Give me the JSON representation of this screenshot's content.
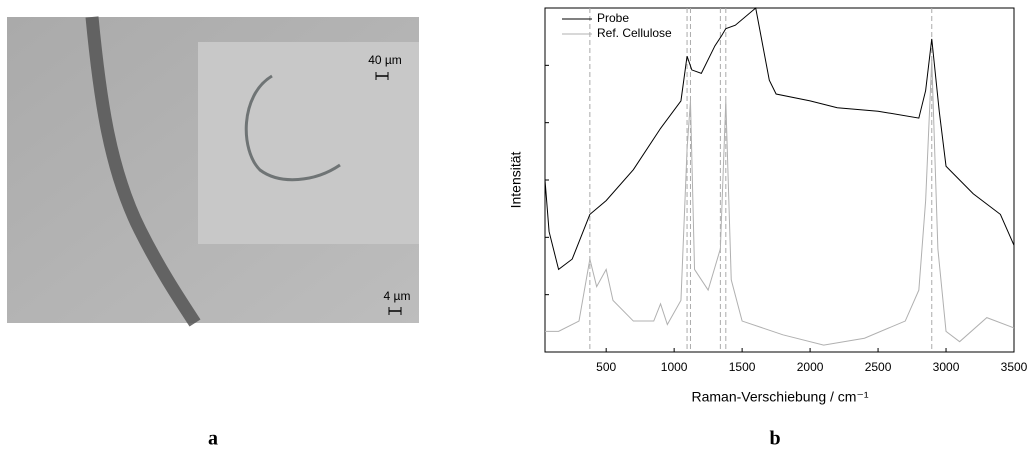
{
  "panels": {
    "a": {
      "caption": "a",
      "scale_inset": "40 µm",
      "scale_main": "4 µm"
    },
    "b": {
      "caption": "b"
    }
  },
  "chart_data": {
    "type": "line",
    "xlabel": "Raman-Verschiebung / cm⁻¹",
    "ylabel": "Intensität",
    "xlim": [
      50,
      3500
    ],
    "ylim": [
      0,
      100
    ],
    "xticks": [
      500,
      1000,
      1500,
      2000,
      2500,
      3000,
      3500
    ],
    "vlines": [
      380,
      1095,
      1120,
      1340,
      1380,
      2895
    ],
    "legend": "upper left",
    "series": [
      {
        "name": "Probe",
        "color": "#000000",
        "x": [
          50,
          80,
          150,
          250,
          380,
          500,
          700,
          900,
          1050,
          1095,
          1130,
          1200,
          1300,
          1350,
          1380,
          1450,
          1600,
          1700,
          1750,
          2000,
          2200,
          2500,
          2800,
          2850,
          2895,
          2950,
          3000,
          3200,
          3400,
          3500
        ],
        "values": [
          50,
          35,
          24,
          27,
          40,
          44,
          53,
          65,
          73,
          86,
          82,
          81,
          89,
          92,
          94,
          95,
          100,
          79,
          75,
          73,
          71,
          70,
          68,
          76,
          91,
          70,
          54,
          46,
          40,
          31
        ]
      },
      {
        "name": "Ref. Cellulose",
        "color": "#b0b0b0",
        "x": [
          50,
          150,
          300,
          380,
          430,
          500,
          550,
          700,
          850,
          900,
          950,
          1050,
          1095,
          1120,
          1150,
          1250,
          1340,
          1380,
          1420,
          1500,
          1800,
          2100,
          2400,
          2700,
          2800,
          2850,
          2895,
          2940,
          3000,
          3100,
          3300,
          3500
        ],
        "values": [
          6,
          6,
          9,
          27,
          19,
          24,
          15,
          9,
          9,
          14,
          8,
          15,
          59,
          73,
          24,
          18,
          30,
          73,
          21,
          9,
          5,
          2,
          4,
          9,
          18,
          44,
          85,
          30,
          6,
          3,
          10,
          7
        ]
      }
    ]
  }
}
